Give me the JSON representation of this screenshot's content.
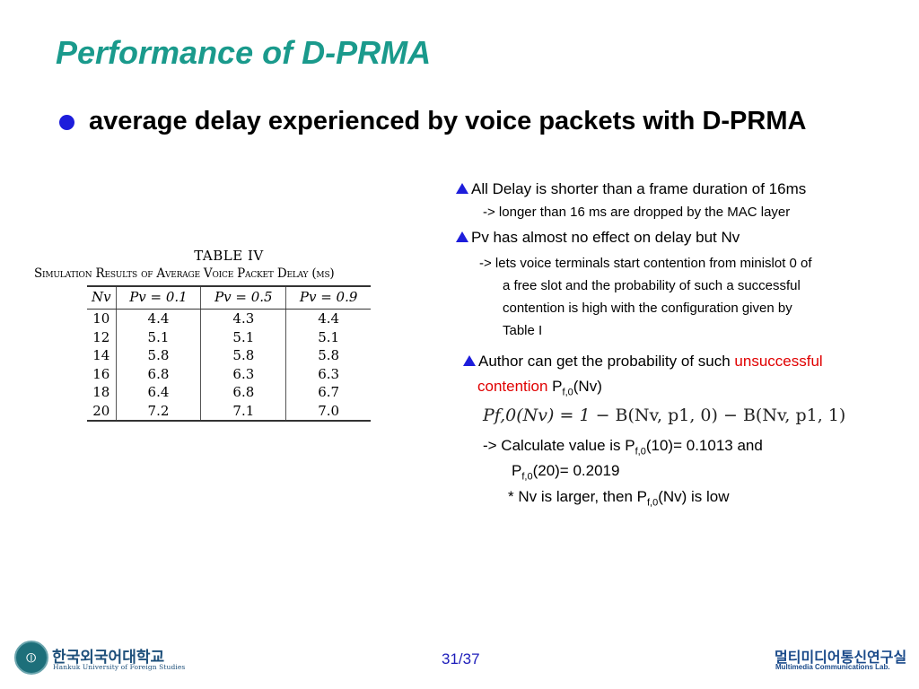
{
  "title": "Performance of D-PRMA",
  "bullet": "average delay experienced by voice packets with D-PRMA",
  "notes": {
    "n1": "All Delay is shorter than a frame duration of 16ms",
    "n1_sub": "-> longer than 16 ms are dropped by the MAC layer",
    "n2": "Pv has almost no effect on delay but Nv",
    "n2_sub1": "-> lets voice terminals start contention from minislot 0 of",
    "n2_sub2": "a free slot  and the probability of such a successful",
    "n2_sub3": "contention is high with the configuration given by",
    "n2_sub4": "Table I",
    "n3_pre": "Author can get the probability of such ",
    "n3_red1": "unsuccessful",
    "n3_red2": "contention",
    "n3_p": " P",
    "n3_sub": "f,0",
    "n3_post": "(Nv)",
    "calc_pre": "-> Calculate value is P",
    "calc_sub": "f,0",
    "calc_post": "(10)= 0.1013 and",
    "calc2_pre": "P",
    "calc2_sub": "f,0",
    "calc2_post": "(20)= 0.2019",
    "star_pre": "* Nv is larger, then P",
    "star_sub": "f,0",
    "star_post": "(Nv) is low"
  },
  "formula": {
    "lhs": "Pf,0(Nv) = 1 − ",
    "b1": "B(Nv, p1, 0)",
    "minus": " − ",
    "b2": "B(Nv, p1, 1)"
  },
  "table": {
    "caption": "TABLE   IV",
    "subcaption": "Simulation Results of Average Voice Packet Delay (ms)",
    "headers": [
      "Nv",
      "Pv = 0.1",
      "Pv = 0.5",
      "Pv = 0.9"
    ],
    "rows": [
      [
        "10",
        "4.4",
        "4.3",
        "4.4"
      ],
      [
        "12",
        "5.1",
        "5.1",
        "5.1"
      ],
      [
        "14",
        "5.8",
        "5.8",
        "5.8"
      ],
      [
        "16",
        "6.8",
        "6.3",
        "6.3"
      ],
      [
        "18",
        "6.4",
        "6.8",
        "6.7"
      ],
      [
        "20",
        "7.2",
        "7.1",
        "7.0"
      ]
    ]
  },
  "footer": {
    "university_ko": "한국외국어대학교",
    "university_en": "Hankuk University of Foreign Studies",
    "page": "31/37",
    "lab_ko": "멀티미디어통신연구실",
    "lab_en": "Multimedia Communications Lab."
  },
  "colors": {
    "title": "#1a9a8c",
    "bullet": "#1d1ddb",
    "highlight": "#e00000",
    "page_number": "#1d1dba"
  }
}
